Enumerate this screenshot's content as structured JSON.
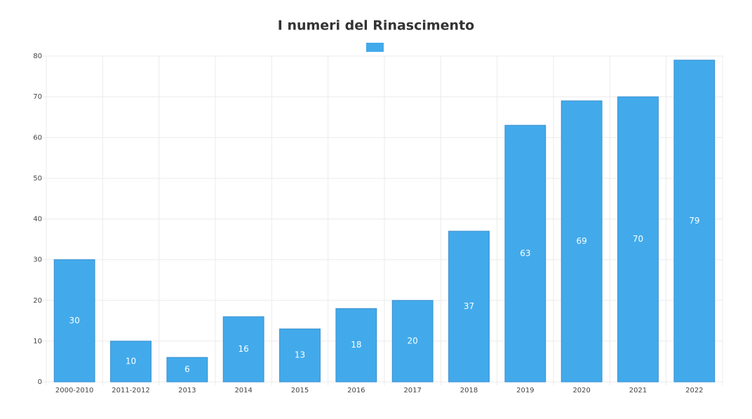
{
  "chart_data": {
    "type": "bar",
    "title": "I numeri del Rinascimento",
    "categories": [
      "2000-2010",
      "2011-2012",
      "2013",
      "2014",
      "2015",
      "2016",
      "2017",
      "2018",
      "2019",
      "2020",
      "2021",
      "2022"
    ],
    "values": [
      30,
      10,
      6,
      16,
      13,
      18,
      20,
      37,
      63,
      69,
      70,
      79
    ],
    "color": "#42aaeb",
    "ylim": [
      0,
      80
    ],
    "yticks": [
      0,
      10,
      20,
      30,
      40,
      50,
      60,
      70,
      80
    ],
    "grid": true
  }
}
